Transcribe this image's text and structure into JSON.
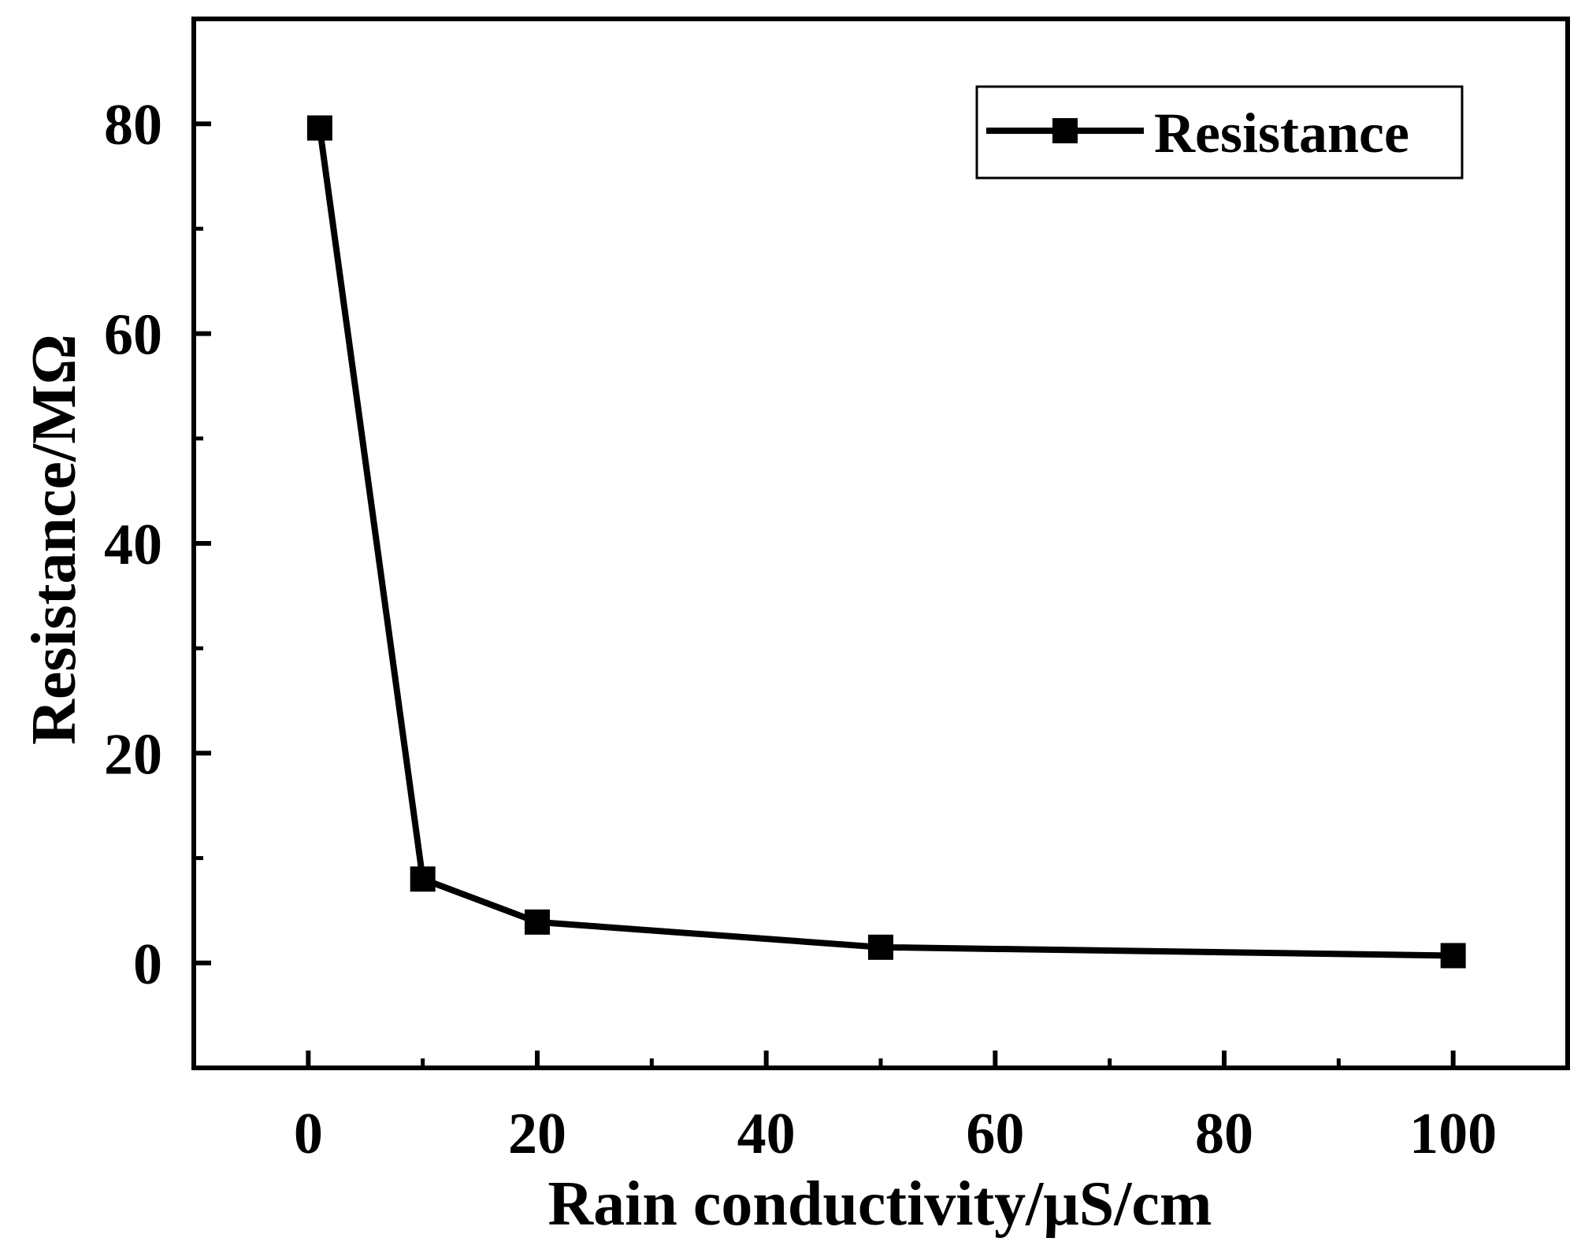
{
  "chart_data": {
    "type": "line",
    "xlabel": "Rain conductivity/μS/cm",
    "ylabel": "Resistance/MΩ",
    "xlim": [
      -10,
      110
    ],
    "ylim": [
      -10,
      90
    ],
    "x_ticks": [
      0,
      20,
      40,
      60,
      80,
      100
    ],
    "y_ticks": [
      0,
      20,
      40,
      60,
      80
    ],
    "x_minor_ticks": [
      10,
      30,
      50,
      70,
      90
    ],
    "y_minor_ticks": [
      10,
      30,
      50,
      70
    ],
    "grid": false,
    "legend_position": "top-right",
    "series": [
      {
        "name": "Resistance",
        "marker": "square",
        "color": "#000000",
        "x": [
          1,
          10,
          20,
          50,
          100
        ],
        "y": [
          79.6,
          8.0,
          3.9,
          1.5,
          0.7
        ]
      }
    ]
  }
}
